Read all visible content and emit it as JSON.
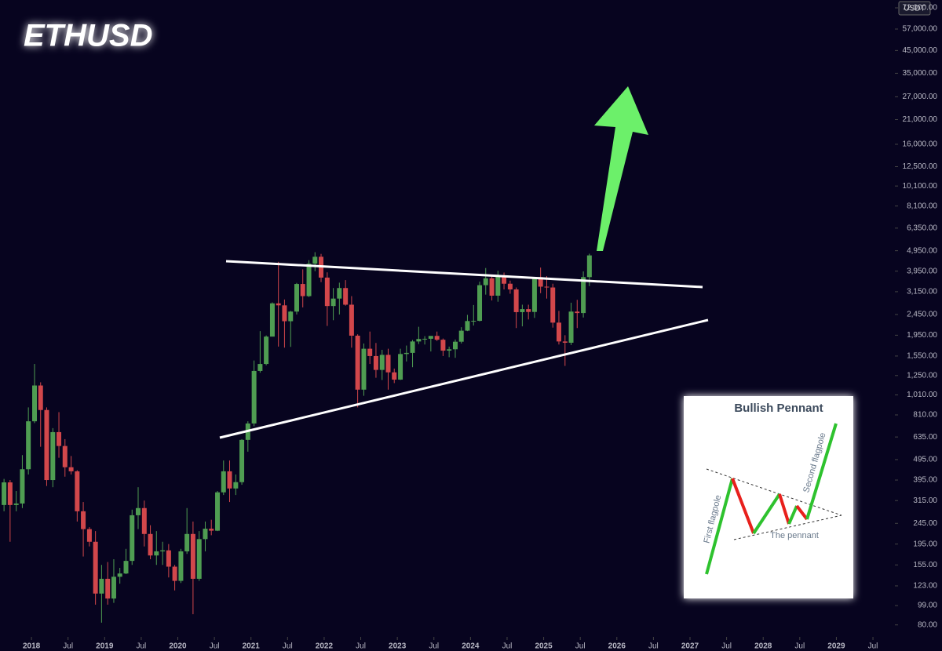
{
  "chart_data": {
    "type": "candlestick",
    "title": "ETHUSD",
    "currency_label": "USDT",
    "log_scale": true,
    "up_color": "#4f9d52",
    "down_color": "#d2474b",
    "xlim": [
      2017.57,
      2029.8
    ],
    "ylim": [
      60,
      78500
    ],
    "xticks": [
      {
        "value": 2018,
        "label": "2018"
      },
      {
        "value": 2018.5,
        "label": "Jul"
      },
      {
        "value": 2019,
        "label": "2019"
      },
      {
        "value": 2019.5,
        "label": "Jul"
      },
      {
        "value": 2020,
        "label": "2020"
      },
      {
        "value": 2020.5,
        "label": "Jul"
      },
      {
        "value": 2021,
        "label": "2021"
      },
      {
        "value": 2021.5,
        "label": "Jul"
      },
      {
        "value": 2022,
        "label": "2022"
      },
      {
        "value": 2022.5,
        "label": "Jul"
      },
      {
        "value": 2023,
        "label": "2023"
      },
      {
        "value": 2023.5,
        "label": "Jul"
      },
      {
        "value": 2024,
        "label": "2024"
      },
      {
        "value": 2024.5,
        "label": "Jul"
      },
      {
        "value": 2025,
        "label": "2025"
      },
      {
        "value": 2025.5,
        "label": "Jul"
      },
      {
        "value": 2026,
        "label": "2026"
      },
      {
        "value": 2026.5,
        "label": "Jul"
      },
      {
        "value": 2027,
        "label": "2027"
      },
      {
        "value": 2027.5,
        "label": "Jul"
      },
      {
        "value": 2028,
        "label": "2028"
      },
      {
        "value": 2028.5,
        "label": "Jul"
      },
      {
        "value": 2029,
        "label": "2029"
      },
      {
        "value": 2029.5,
        "label": "Jul"
      }
    ],
    "yticks": [
      {
        "value": 72000,
        "label": "72,000.00"
      },
      {
        "value": 57000,
        "label": "57,000.00"
      },
      {
        "value": 45000,
        "label": "45,000.00"
      },
      {
        "value": 35000,
        "label": "35,000.00"
      },
      {
        "value": 27000,
        "label": "27,000.00"
      },
      {
        "value": 21000,
        "label": "21,000.00"
      },
      {
        "value": 16000,
        "label": "16,000.00"
      },
      {
        "value": 12500,
        "label": "12,500.00"
      },
      {
        "value": 10100,
        "label": "10,100.00"
      },
      {
        "value": 8100,
        "label": "8,100.00"
      },
      {
        "value": 6350,
        "label": "6,350.00"
      },
      {
        "value": 4950,
        "label": "4,950.00"
      },
      {
        "value": 3950,
        "label": "3,950.00"
      },
      {
        "value": 3150,
        "label": "3,150.00"
      },
      {
        "value": 2450,
        "label": "2,450.00"
      },
      {
        "value": 1950,
        "label": "1,950.00"
      },
      {
        "value": 1550,
        "label": "1,550.00"
      },
      {
        "value": 1250,
        "label": "1,250.00"
      },
      {
        "value": 1010,
        "label": "1,010.00"
      },
      {
        "value": 810,
        "label": "810.00"
      },
      {
        "value": 635,
        "label": "635.00"
      },
      {
        "value": 495,
        "label": "495.00"
      },
      {
        "value": 395,
        "label": "395.00"
      },
      {
        "value": 315,
        "label": "315.00"
      },
      {
        "value": 245,
        "label": "245.00"
      },
      {
        "value": 195,
        "label": "195.00"
      },
      {
        "value": 155,
        "label": "155.00"
      },
      {
        "value": 123,
        "label": "123.00"
      },
      {
        "value": 99,
        "label": "99.00"
      },
      {
        "value": 80,
        "label": "80.00"
      }
    ],
    "candles": [
      {
        "x": 2017.625,
        "open": 300,
        "high": 400,
        "low": 280,
        "close": 385
      },
      {
        "x": 2017.708,
        "open": 385,
        "high": 395,
        "low": 200,
        "close": 300
      },
      {
        "x": 2017.792,
        "open": 300,
        "high": 350,
        "low": 280,
        "close": 305
      },
      {
        "x": 2017.875,
        "open": 305,
        "high": 520,
        "low": 290,
        "close": 445
      },
      {
        "x": 2017.958,
        "open": 445,
        "high": 880,
        "low": 420,
        "close": 755
      },
      {
        "x": 2018.042,
        "open": 755,
        "high": 1420,
        "low": 740,
        "close": 1120
      },
      {
        "x": 2018.125,
        "open": 1120,
        "high": 1160,
        "low": 570,
        "close": 855
      },
      {
        "x": 2018.208,
        "open": 855,
        "high": 880,
        "low": 370,
        "close": 395
      },
      {
        "x": 2018.292,
        "open": 395,
        "high": 700,
        "low": 365,
        "close": 670
      },
      {
        "x": 2018.375,
        "open": 670,
        "high": 835,
        "low": 505,
        "close": 575
      },
      {
        "x": 2018.458,
        "open": 575,
        "high": 620,
        "low": 410,
        "close": 455
      },
      {
        "x": 2018.542,
        "open": 455,
        "high": 515,
        "low": 420,
        "close": 435
      },
      {
        "x": 2018.625,
        "open": 435,
        "high": 440,
        "low": 250,
        "close": 280
      },
      {
        "x": 2018.708,
        "open": 280,
        "high": 310,
        "low": 170,
        "close": 230
      },
      {
        "x": 2018.792,
        "open": 230,
        "high": 235,
        "low": 190,
        "close": 200
      },
      {
        "x": 2018.875,
        "open": 200,
        "high": 225,
        "low": 100,
        "close": 113
      },
      {
        "x": 2018.958,
        "open": 113,
        "high": 155,
        "low": 82,
        "close": 133
      },
      {
        "x": 2019.042,
        "open": 133,
        "high": 160,
        "low": 100,
        "close": 107
      },
      {
        "x": 2019.125,
        "open": 107,
        "high": 165,
        "low": 102,
        "close": 136
      },
      {
        "x": 2019.208,
        "open": 136,
        "high": 150,
        "low": 126,
        "close": 141
      },
      {
        "x": 2019.292,
        "open": 141,
        "high": 185,
        "low": 140,
        "close": 162
      },
      {
        "x": 2019.375,
        "open": 162,
        "high": 285,
        "low": 155,
        "close": 268
      },
      {
        "x": 2019.458,
        "open": 268,
        "high": 365,
        "low": 230,
        "close": 290
      },
      {
        "x": 2019.542,
        "open": 290,
        "high": 315,
        "low": 190,
        "close": 218
      },
      {
        "x": 2019.625,
        "open": 218,
        "high": 240,
        "low": 165,
        "close": 172
      },
      {
        "x": 2019.708,
        "open": 172,
        "high": 225,
        "low": 155,
        "close": 180
      },
      {
        "x": 2019.792,
        "open": 180,
        "high": 200,
        "low": 155,
        "close": 182
      },
      {
        "x": 2019.875,
        "open": 182,
        "high": 195,
        "low": 135,
        "close": 152
      },
      {
        "x": 2019.958,
        "open": 152,
        "high": 155,
        "low": 117,
        "close": 130
      },
      {
        "x": 2020.042,
        "open": 130,
        "high": 185,
        "low": 127,
        "close": 180
      },
      {
        "x": 2020.125,
        "open": 180,
        "high": 290,
        "low": 175,
        "close": 218
      },
      {
        "x": 2020.208,
        "open": 218,
        "high": 250,
        "low": 90,
        "close": 133
      },
      {
        "x": 2020.292,
        "open": 133,
        "high": 225,
        "low": 130,
        "close": 206
      },
      {
        "x": 2020.375,
        "open": 206,
        "high": 250,
        "low": 180,
        "close": 231
      },
      {
        "x": 2020.458,
        "open": 231,
        "high": 255,
        "low": 215,
        "close": 226
      },
      {
        "x": 2020.542,
        "open": 226,
        "high": 350,
        "low": 225,
        "close": 345
      },
      {
        "x": 2020.625,
        "open": 345,
        "high": 490,
        "low": 335,
        "close": 435
      },
      {
        "x": 2020.708,
        "open": 435,
        "high": 490,
        "low": 310,
        "close": 360
      },
      {
        "x": 2020.792,
        "open": 360,
        "high": 420,
        "low": 335,
        "close": 386
      },
      {
        "x": 2020.875,
        "open": 386,
        "high": 620,
        "low": 375,
        "close": 615
      },
      {
        "x": 2020.958,
        "open": 615,
        "high": 755,
        "low": 540,
        "close": 737
      },
      {
        "x": 2021.042,
        "open": 737,
        "high": 1475,
        "low": 715,
        "close": 1315
      },
      {
        "x": 2021.125,
        "open": 1315,
        "high": 2040,
        "low": 1290,
        "close": 1420
      },
      {
        "x": 2021.208,
        "open": 1420,
        "high": 1945,
        "low": 1400,
        "close": 1920
      },
      {
        "x": 2021.292,
        "open": 1920,
        "high": 2800,
        "low": 1930,
        "close": 2770
      },
      {
        "x": 2021.375,
        "open": 2770,
        "high": 4380,
        "low": 1720,
        "close": 2710
      },
      {
        "x": 2021.458,
        "open": 2710,
        "high": 2890,
        "low": 1700,
        "close": 2275
      },
      {
        "x": 2021.542,
        "open": 2275,
        "high": 2550,
        "low": 1715,
        "close": 2530
      },
      {
        "x": 2021.625,
        "open": 2530,
        "high": 3470,
        "low": 2450,
        "close": 3430
      },
      {
        "x": 2021.708,
        "open": 3430,
        "high": 4030,
        "low": 2650,
        "close": 3000
      },
      {
        "x": 2021.792,
        "open": 3000,
        "high": 4460,
        "low": 2970,
        "close": 4290
      },
      {
        "x": 2021.875,
        "open": 4290,
        "high": 4870,
        "low": 3950,
        "close": 4630
      },
      {
        "x": 2021.958,
        "open": 4630,
        "high": 4780,
        "low": 3500,
        "close": 3680
      },
      {
        "x": 2022.042,
        "open": 3680,
        "high": 3900,
        "low": 2160,
        "close": 2690
      },
      {
        "x": 2022.125,
        "open": 2690,
        "high": 3280,
        "low": 2300,
        "close": 2920
      },
      {
        "x": 2022.208,
        "open": 2920,
        "high": 3480,
        "low": 2450,
        "close": 3280
      },
      {
        "x": 2022.292,
        "open": 3280,
        "high": 3580,
        "low": 2700,
        "close": 2730
      },
      {
        "x": 2022.375,
        "open": 2730,
        "high": 3000,
        "low": 1700,
        "close": 1940
      },
      {
        "x": 2022.458,
        "open": 1940,
        "high": 1970,
        "low": 880,
        "close": 1070
      },
      {
        "x": 2022.542,
        "open": 1070,
        "high": 1780,
        "low": 1000,
        "close": 1680
      },
      {
        "x": 2022.625,
        "open": 1680,
        "high": 2030,
        "low": 1420,
        "close": 1550
      },
      {
        "x": 2022.708,
        "open": 1550,
        "high": 1790,
        "low": 1220,
        "close": 1330
      },
      {
        "x": 2022.792,
        "open": 1330,
        "high": 1660,
        "low": 1190,
        "close": 1570
      },
      {
        "x": 2022.875,
        "open": 1570,
        "high": 1680,
        "low": 1070,
        "close": 1295
      },
      {
        "x": 2022.958,
        "open": 1295,
        "high": 1350,
        "low": 1150,
        "close": 1195
      },
      {
        "x": 2023.042,
        "open": 1195,
        "high": 1680,
        "low": 1190,
        "close": 1585
      },
      {
        "x": 2023.125,
        "open": 1585,
        "high": 1740,
        "low": 1460,
        "close": 1605
      },
      {
        "x": 2023.208,
        "open": 1605,
        "high": 1850,
        "low": 1370,
        "close": 1820
      },
      {
        "x": 2023.292,
        "open": 1820,
        "high": 2140,
        "low": 1770,
        "close": 1870
      },
      {
        "x": 2023.375,
        "open": 1870,
        "high": 1930,
        "low": 1760,
        "close": 1875
      },
      {
        "x": 2023.458,
        "open": 1875,
        "high": 1930,
        "low": 1630,
        "close": 1935
      },
      {
        "x": 2023.542,
        "open": 1935,
        "high": 2030,
        "low": 1830,
        "close": 1855
      },
      {
        "x": 2023.625,
        "open": 1855,
        "high": 1880,
        "low": 1550,
        "close": 1645
      },
      {
        "x": 2023.708,
        "open": 1645,
        "high": 1720,
        "low": 1530,
        "close": 1670
      },
      {
        "x": 2023.792,
        "open": 1670,
        "high": 1860,
        "low": 1520,
        "close": 1815
      },
      {
        "x": 2023.875,
        "open": 1815,
        "high": 2130,
        "low": 1780,
        "close": 2050
      },
      {
        "x": 2023.958,
        "open": 2050,
        "high": 2440,
        "low": 2040,
        "close": 2280
      },
      {
        "x": 2024.042,
        "open": 2280,
        "high": 2720,
        "low": 2170,
        "close": 2285
      },
      {
        "x": 2024.125,
        "open": 2285,
        "high": 3520,
        "low": 2270,
        "close": 3385
      },
      {
        "x": 2024.208,
        "open": 3385,
        "high": 4090,
        "low": 3050,
        "close": 3650
      },
      {
        "x": 2024.292,
        "open": 3650,
        "high": 3730,
        "low": 2860,
        "close": 3015
      },
      {
        "x": 2024.375,
        "open": 3015,
        "high": 3970,
        "low": 2820,
        "close": 3760
      },
      {
        "x": 2024.458,
        "open": 3760,
        "high": 3890,
        "low": 3230,
        "close": 3440
      },
      {
        "x": 2024.542,
        "open": 3440,
        "high": 3560,
        "low": 3080,
        "close": 3230
      },
      {
        "x": 2024.625,
        "open": 3230,
        "high": 3300,
        "low": 2110,
        "close": 2515
      },
      {
        "x": 2024.708,
        "open": 2515,
        "high": 2730,
        "low": 2150,
        "close": 2600
      },
      {
        "x": 2024.792,
        "open": 2600,
        "high": 2730,
        "low": 2320,
        "close": 2520
      },
      {
        "x": 2024.875,
        "open": 2520,
        "high": 3700,
        "low": 2360,
        "close": 3700
      },
      {
        "x": 2024.958,
        "open": 3700,
        "high": 4110,
        "low": 3100,
        "close": 3330
      },
      {
        "x": 2025.042,
        "open": 3330,
        "high": 3740,
        "low": 2920,
        "close": 3300
      },
      {
        "x": 2025.125,
        "open": 3300,
        "high": 3440,
        "low": 2120,
        "close": 2240
      },
      {
        "x": 2025.208,
        "open": 2240,
        "high": 2550,
        "low": 1760,
        "close": 1820
      },
      {
        "x": 2025.292,
        "open": 1820,
        "high": 1950,
        "low": 1390,
        "close": 1795
      },
      {
        "x": 2025.375,
        "open": 1795,
        "high": 2790,
        "low": 1750,
        "close": 2530
      },
      {
        "x": 2025.458,
        "open": 2530,
        "high": 2880,
        "low": 2110,
        "close": 2490
      },
      {
        "x": 2025.542,
        "open": 2490,
        "high": 3940,
        "low": 2370,
        "close": 3700
      },
      {
        "x": 2025.625,
        "open": 3700,
        "high": 4790,
        "low": 3350,
        "close": 4700
      }
    ]
  },
  "inset": {
    "title": "Bullish Pennant",
    "labels": [
      "First flagpole",
      "Second flagpole",
      "The pennant"
    ]
  }
}
